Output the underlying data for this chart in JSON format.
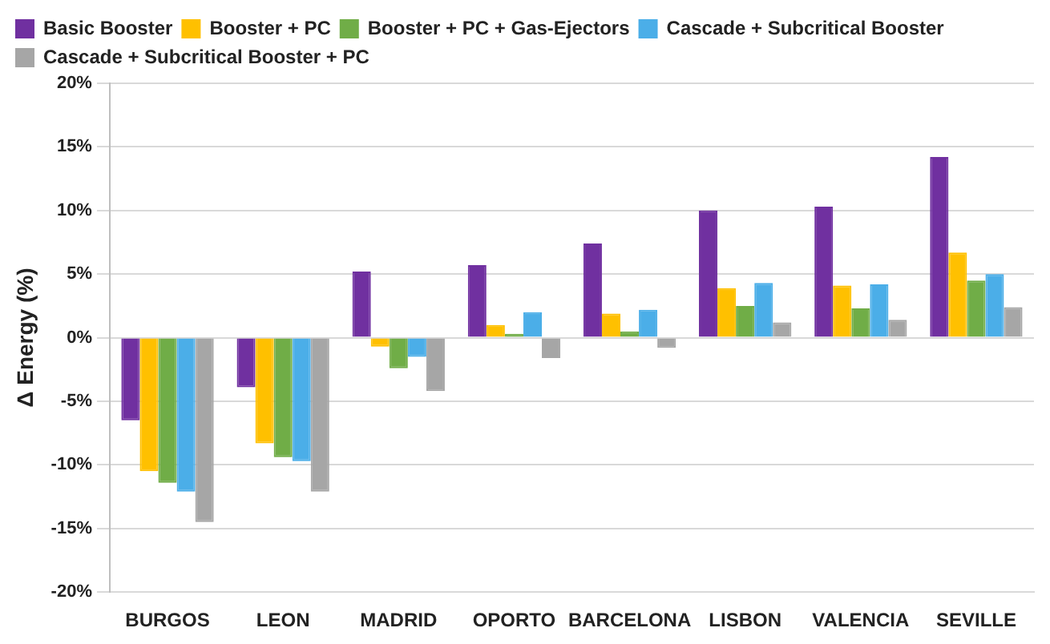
{
  "chart_data": {
    "type": "bar",
    "ylabel": "Δ Energy (%)",
    "categories": [
      "BURGOS",
      "LEON",
      "MADRID",
      "OPORTO",
      "BARCELONA",
      "LISBON",
      "VALENCIA",
      "SEVILLE"
    ],
    "series": [
      {
        "name": "Basic Booster",
        "color": "#7030a0",
        "values": [
          -6.5,
          -3.9,
          5.2,
          5.7,
          7.4,
          10.0,
          10.3,
          14.2
        ]
      },
      {
        "name": "Booster + PC",
        "color": "#ffc000",
        "values": [
          -10.5,
          -8.3,
          -0.7,
          1.0,
          1.9,
          3.9,
          4.1,
          6.7
        ]
      },
      {
        "name": "Booster + PC + Gas-Ejectors",
        "color": "#70ad47",
        "values": [
          -11.4,
          -9.4,
          -2.4,
          0.3,
          0.5,
          2.5,
          2.3,
          4.5
        ]
      },
      {
        "name": "Cascade + Subcritical Booster",
        "color": "#4baee8",
        "values": [
          -12.1,
          -9.7,
          -1.5,
          2.0,
          2.2,
          4.3,
          4.2,
          5.0
        ]
      },
      {
        "name": "Cascade + Subcritical Booster + PC",
        "color": "#a6a6a6",
        "values": [
          -14.5,
          -12.1,
          -4.2,
          -1.6,
          -0.8,
          1.2,
          1.4,
          2.4
        ]
      }
    ],
    "ylim": [
      -20,
      20
    ],
    "yticks": [
      {
        "value": -20,
        "label": "-20%"
      },
      {
        "value": -15,
        "label": "-15%"
      },
      {
        "value": -10,
        "label": "-10%"
      },
      {
        "value": -5,
        "label": "-5%"
      },
      {
        "value": 0,
        "label": "0%"
      },
      {
        "value": 5,
        "label": "5%"
      },
      {
        "value": 10,
        "label": "10%"
      },
      {
        "value": 15,
        "label": "15%"
      },
      {
        "value": 20,
        "label": "20%"
      }
    ],
    "grid": "y",
    "legend": "top left"
  }
}
